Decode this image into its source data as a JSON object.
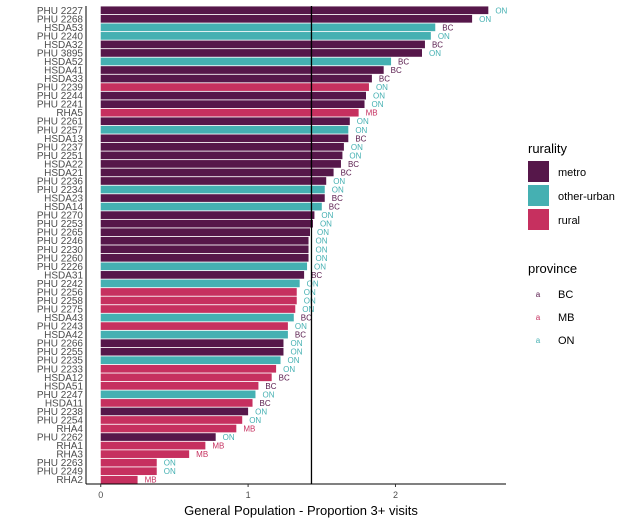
{
  "chart_data": {
    "type": "bar",
    "orientation": "horizontal",
    "xlabel": "General Population - Proportion 3+ visits",
    "ylabel": "",
    "xlim": [
      -0.1,
      2.75
    ],
    "xticks": [
      0,
      1,
      2
    ],
    "reference_line": 1.43,
    "grid": false,
    "legend_placement": "right",
    "colors": {
      "metro": "#56174a",
      "other-urban": "#45b0b2",
      "rural": "#c6305f",
      "BC": "#56174a",
      "ON": "#45b0b2",
      "MB": "#c6305f"
    },
    "legend_rurality": {
      "title": "rurality",
      "items": [
        {
          "key": "metro",
          "label": "metro"
        },
        {
          "key": "other-urban",
          "label": "other-urban"
        },
        {
          "key": "rural",
          "label": "rural"
        }
      ]
    },
    "legend_province": {
      "title": "province",
      "key_glyph": "a",
      "items": [
        {
          "key": "BC",
          "label": "BC"
        },
        {
          "key": "MB",
          "label": "MB"
        },
        {
          "key": "ON",
          "label": "ON"
        }
      ]
    },
    "bars": [
      {
        "label": "PHU 2227",
        "value": 2.63,
        "rurality": "metro",
        "province": "ON"
      },
      {
        "label": "PHU 2268",
        "value": 2.52,
        "rurality": "metro",
        "province": "ON"
      },
      {
        "label": "HSDA53",
        "value": 2.27,
        "rurality": "other-urban",
        "province": "BC"
      },
      {
        "label": "PHU 2240",
        "value": 2.24,
        "rurality": "other-urban",
        "province": "ON"
      },
      {
        "label": "HSDA32",
        "value": 2.2,
        "rurality": "metro",
        "province": "BC"
      },
      {
        "label": "PHU 3895",
        "value": 2.18,
        "rurality": "metro",
        "province": "ON"
      },
      {
        "label": "HSDA52",
        "value": 1.97,
        "rurality": "other-urban",
        "province": "BC"
      },
      {
        "label": "HSDA41",
        "value": 1.92,
        "rurality": "metro",
        "province": "BC"
      },
      {
        "label": "HSDA33",
        "value": 1.84,
        "rurality": "metro",
        "province": "BC"
      },
      {
        "label": "PHU 2239",
        "value": 1.82,
        "rurality": "rural",
        "province": "ON"
      },
      {
        "label": "PHU 2244",
        "value": 1.8,
        "rurality": "metro",
        "province": "ON"
      },
      {
        "label": "PHU 2241",
        "value": 1.79,
        "rurality": "metro",
        "province": "ON"
      },
      {
        "label": "RHA5",
        "value": 1.75,
        "rurality": "rural",
        "province": "MB"
      },
      {
        "label": "PHU 2261",
        "value": 1.69,
        "rurality": "metro",
        "province": "ON"
      },
      {
        "label": "PHU 2257",
        "value": 1.68,
        "rurality": "other-urban",
        "province": "ON"
      },
      {
        "label": "HSDA13",
        "value": 1.68,
        "rurality": "metro",
        "province": "BC"
      },
      {
        "label": "PHU 2237",
        "value": 1.65,
        "rurality": "metro",
        "province": "ON"
      },
      {
        "label": "PHU 2251",
        "value": 1.64,
        "rurality": "metro",
        "province": "ON"
      },
      {
        "label": "HSDA22",
        "value": 1.63,
        "rurality": "metro",
        "province": "BC"
      },
      {
        "label": "HSDA21",
        "value": 1.58,
        "rurality": "metro",
        "province": "BC"
      },
      {
        "label": "PHU 2236",
        "value": 1.53,
        "rurality": "metro",
        "province": "ON"
      },
      {
        "label": "PHU 2234",
        "value": 1.52,
        "rurality": "other-urban",
        "province": "ON"
      },
      {
        "label": "HSDA23",
        "value": 1.52,
        "rurality": "metro",
        "province": "BC"
      },
      {
        "label": "HSDA14",
        "value": 1.5,
        "rurality": "other-urban",
        "province": "BC"
      },
      {
        "label": "PHU 2270",
        "value": 1.45,
        "rurality": "metro",
        "province": "ON"
      },
      {
        "label": "PHU 2253",
        "value": 1.44,
        "rurality": "metro",
        "province": "ON"
      },
      {
        "label": "PHU 2265",
        "value": 1.42,
        "rurality": "metro",
        "province": "ON"
      },
      {
        "label": "PHU 2246",
        "value": 1.41,
        "rurality": "metro",
        "province": "ON"
      },
      {
        "label": "PHU 2230",
        "value": 1.41,
        "rurality": "metro",
        "province": "ON"
      },
      {
        "label": "PHU 2260",
        "value": 1.41,
        "rurality": "metro",
        "province": "ON"
      },
      {
        "label": "PHU 2226",
        "value": 1.4,
        "rurality": "other-urban",
        "province": "ON"
      },
      {
        "label": "HSDA31",
        "value": 1.38,
        "rurality": "metro",
        "province": "BC"
      },
      {
        "label": "PHU 2242",
        "value": 1.35,
        "rurality": "other-urban",
        "province": "ON"
      },
      {
        "label": "PHU 2256",
        "value": 1.33,
        "rurality": "rural",
        "province": "ON"
      },
      {
        "label": "PHU 2258",
        "value": 1.33,
        "rurality": "rural",
        "province": "ON"
      },
      {
        "label": "PHU 2275",
        "value": 1.32,
        "rurality": "rural",
        "province": "ON"
      },
      {
        "label": "HSDA43",
        "value": 1.31,
        "rurality": "other-urban",
        "province": "BC"
      },
      {
        "label": "PHU 2243",
        "value": 1.27,
        "rurality": "rural",
        "province": "ON"
      },
      {
        "label": "HSDA42",
        "value": 1.27,
        "rurality": "other-urban",
        "province": "BC"
      },
      {
        "label": "PHU 2266",
        "value": 1.24,
        "rurality": "metro",
        "province": "ON"
      },
      {
        "label": "PHU 2255",
        "value": 1.24,
        "rurality": "metro",
        "province": "ON"
      },
      {
        "label": "PHU 2235",
        "value": 1.22,
        "rurality": "other-urban",
        "province": "ON"
      },
      {
        "label": "PHU 2233",
        "value": 1.19,
        "rurality": "rural",
        "province": "ON"
      },
      {
        "label": "HSDA12",
        "value": 1.16,
        "rurality": "rural",
        "province": "BC"
      },
      {
        "label": "HSDA51",
        "value": 1.07,
        "rurality": "rural",
        "province": "BC"
      },
      {
        "label": "PHU 2247",
        "value": 1.05,
        "rurality": "other-urban",
        "province": "ON"
      },
      {
        "label": "HSDA11",
        "value": 1.03,
        "rurality": "rural",
        "province": "BC"
      },
      {
        "label": "PHU 2238",
        "value": 1.0,
        "rurality": "metro",
        "province": "ON"
      },
      {
        "label": "PHU 2254",
        "value": 0.96,
        "rurality": "rural",
        "province": "ON"
      },
      {
        "label": "RHA4",
        "value": 0.92,
        "rurality": "rural",
        "province": "MB"
      },
      {
        "label": "PHU 2262",
        "value": 0.78,
        "rurality": "metro",
        "province": "ON"
      },
      {
        "label": "RHA1",
        "value": 0.71,
        "rurality": "rural",
        "province": "MB"
      },
      {
        "label": "RHA3",
        "value": 0.6,
        "rurality": "rural",
        "province": "MB"
      },
      {
        "label": "PHU 2263",
        "value": 0.38,
        "rurality": "rural",
        "province": "ON"
      },
      {
        "label": "PHU 2249",
        "value": 0.38,
        "rurality": "rural",
        "province": "ON"
      },
      {
        "label": "RHA2",
        "value": 0.25,
        "rurality": "rural",
        "province": "MB"
      }
    ]
  }
}
